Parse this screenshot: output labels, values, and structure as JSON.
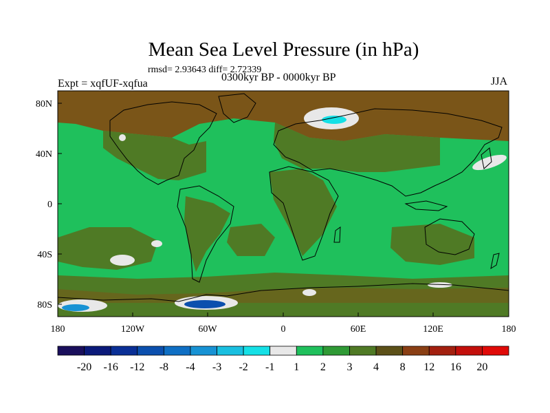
{
  "title": "Mean Sea Level Pressure (in hPa)",
  "stats": "rmsd= 2.93643  diff= 2.72339",
  "experiment": "Expt = xqfUF-xqfua",
  "period": "0300kyr BP - 0000kyr BP",
  "season": "JJA",
  "lat_axis": [
    "80N",
    "40N",
    "0",
    "40S",
    "80S"
  ],
  "lon_axis": [
    "180",
    "120W",
    "60W",
    "0",
    "60E",
    "120E",
    "180"
  ],
  "colorbar": {
    "labels": [
      "-20",
      "-16",
      "-12",
      "-8",
      "-4",
      "-3",
      "-2",
      "-1",
      "1",
      "2",
      "3",
      "4",
      "8",
      "12",
      "16",
      "20"
    ],
    "colors": [
      "#1a0f5c",
      "#0b1a7a",
      "#0a2f96",
      "#0b4fae",
      "#0f6fc4",
      "#1792d4",
      "#19bfe0",
      "#15e0e6",
      "#e8e8e8",
      "#1fc05c",
      "#2f9a35",
      "#4f7a25",
      "#5c5018",
      "#8a3f14",
      "#a3200f",
      "#c30f0b",
      "#e00a08"
    ]
  },
  "palette": {
    "ocean_main": "#1fc05c",
    "land_main": "#4f7a25",
    "high_brown": "#7a5518",
    "neg_white": "#e8e8e8",
    "neg_cyan": "#15e0e6",
    "neg_blue": "#1792d4",
    "neg_dark": "#0b4fae",
    "coast": "#000000"
  }
}
